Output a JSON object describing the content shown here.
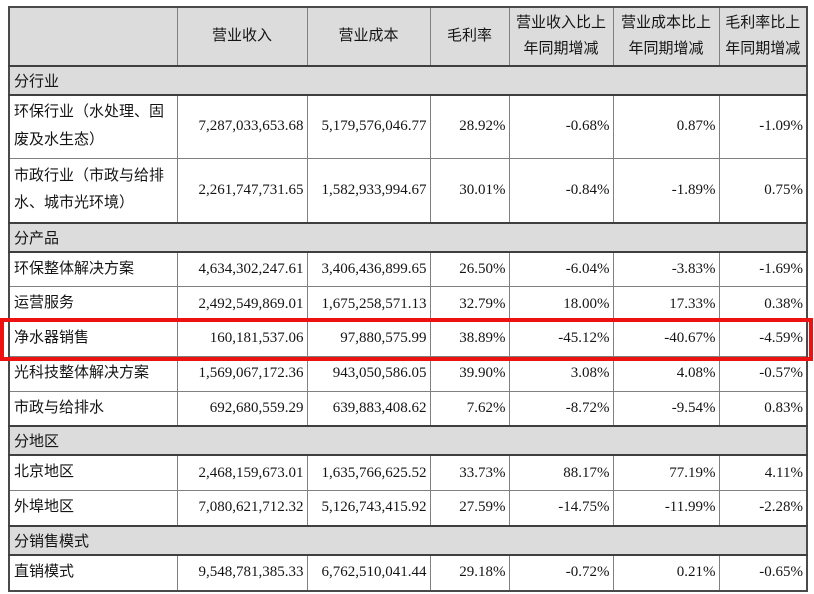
{
  "colors": {
    "section_row_bg": "#dcdcdc",
    "header_row_bg": "#dcdcdc",
    "cell_border": "#808080",
    "dark_rule": "#3f3f3f",
    "highlight_border": "#ee1111"
  },
  "table": {
    "headers": [
      "",
      "营业收入",
      "营业成本",
      "毛利率",
      "营业收入比上年同期增减",
      "营业成本比上年同期增减",
      "毛利率比上年同期增减"
    ],
    "rows": [
      {
        "type": "section",
        "label": "分行业"
      },
      {
        "type": "data",
        "tall": true,
        "label": "环保行业（水处理、固废及水生态）",
        "values": [
          "7,287,033,653.68",
          "5,179,576,046.77",
          "28.92%",
          "-0.68%",
          "0.87%",
          "-1.09%"
        ]
      },
      {
        "type": "data",
        "tall": true,
        "label": "市政行业（市政与给排水、城市光环境）",
        "values": [
          "2,261,747,731.65",
          "1,582,933,994.67",
          "30.01%",
          "-0.84%",
          "-1.89%",
          "0.75%"
        ]
      },
      {
        "type": "section",
        "label": "分产品"
      },
      {
        "type": "data",
        "label": "环保整体解决方案",
        "values": [
          "4,634,302,247.61",
          "3,406,436,899.65",
          "26.50%",
          "-6.04%",
          "-3.83%",
          "-1.69%"
        ]
      },
      {
        "type": "data",
        "label": "运营服务",
        "values": [
          "2,492,549,869.01",
          "1,675,258,571.13",
          "32.79%",
          "18.00%",
          "17.33%",
          "0.38%"
        ]
      },
      {
        "type": "data",
        "highlighted": true,
        "label": "净水器销售",
        "values": [
          "160,181,537.06",
          "97,880,575.99",
          "38.89%",
          "-45.12%",
          "-40.67%",
          "-4.59%"
        ]
      },
      {
        "type": "data",
        "label": "光科技整体解决方案",
        "values": [
          "1,569,067,172.36",
          "943,050,586.05",
          "39.90%",
          "3.08%",
          "4.08%",
          "-0.57%"
        ]
      },
      {
        "type": "data",
        "label": "市政与给排水",
        "values": [
          "692,680,559.29",
          "639,883,408.62",
          "7.62%",
          "-8.72%",
          "-9.54%",
          "0.83%"
        ]
      },
      {
        "type": "section",
        "label": "分地区"
      },
      {
        "type": "data",
        "label": "北京地区",
        "values": [
          "2,468,159,673.01",
          "1,635,766,625.52",
          "33.73%",
          "88.17%",
          "77.19%",
          "4.11%"
        ]
      },
      {
        "type": "data",
        "label": "外埠地区",
        "values": [
          "7,080,621,712.32",
          "5,126,743,415.92",
          "27.59%",
          "-14.75%",
          "-11.99%",
          "-2.28%"
        ]
      },
      {
        "type": "section",
        "label": "分销售模式"
      },
      {
        "type": "data",
        "label": "直销模式",
        "values": [
          "9,548,781,385.33",
          "6,762,510,041.44",
          "29.18%",
          "-0.72%",
          "0.21%",
          "-0.65%"
        ]
      }
    ]
  }
}
